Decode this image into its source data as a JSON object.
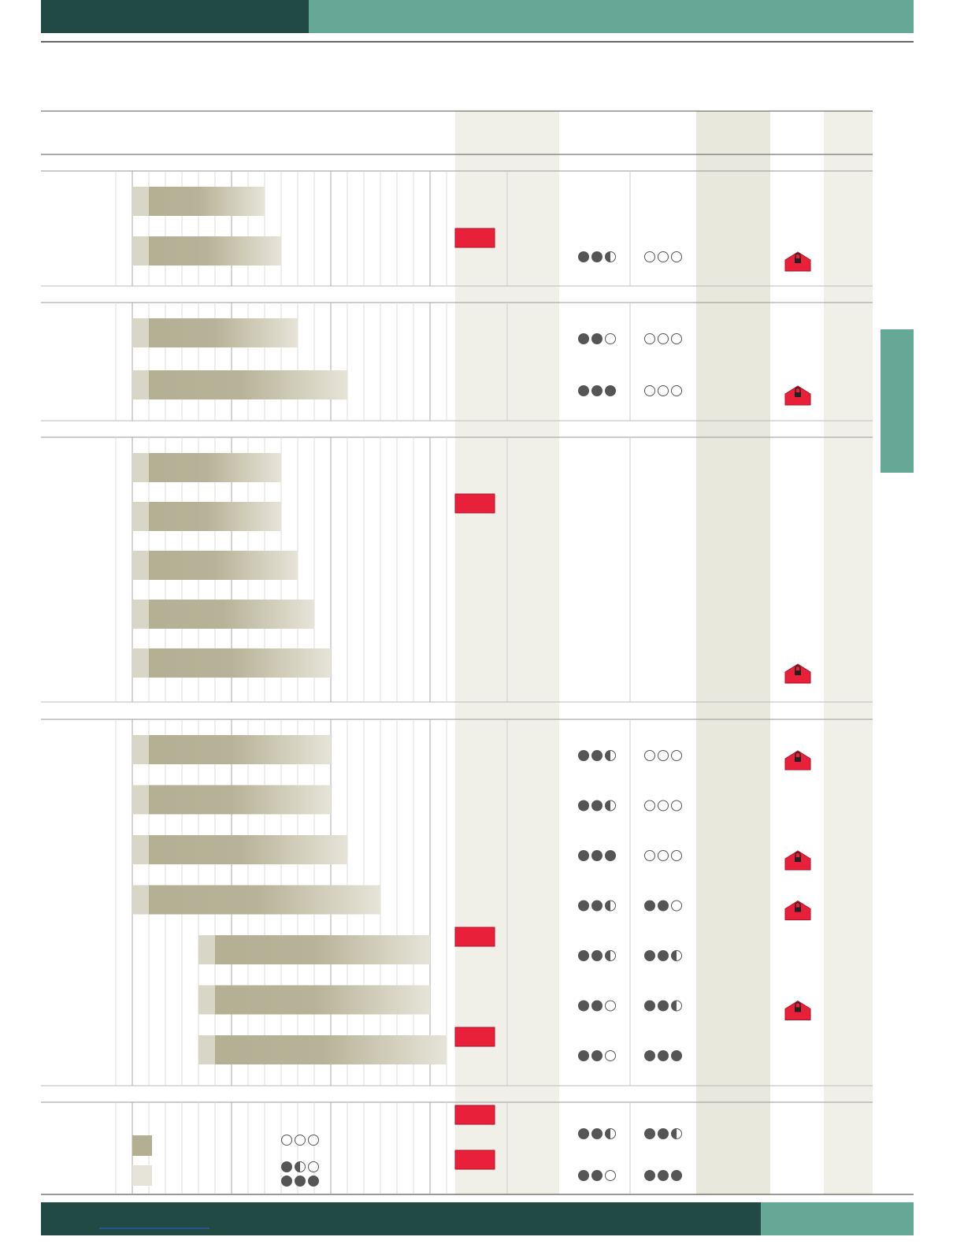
{
  "sections": [
    {
      "rows": [
        {
          "span": [
            1,
            9
          ],
          "ratings": null,
          "flag": false,
          "lock": false
        },
        {
          "span": [
            1,
            10
          ],
          "ratings": [
            2.5,
            0
          ],
          "flag": true,
          "lock": true
        }
      ]
    },
    {
      "rows": [
        {
          "span": [
            1,
            11
          ],
          "ratings": [
            2,
            0
          ],
          "flag": false,
          "lock": false
        },
        {
          "span": [
            1,
            14
          ],
          "ratings": [
            3,
            0
          ],
          "flag": false,
          "lock": true
        }
      ]
    },
    {
      "rows": [
        {
          "span": [
            1,
            10
          ],
          "ratings": null,
          "flag": false,
          "lock": false
        },
        {
          "span": [
            1,
            10
          ],
          "ratings": null,
          "flag": true,
          "lock": false
        },
        {
          "span": [
            1,
            11
          ],
          "ratings": null,
          "flag": false,
          "lock": false
        },
        {
          "span": [
            1,
            12
          ],
          "ratings": null,
          "flag": false,
          "lock": false
        },
        {
          "span": [
            1,
            13
          ],
          "ratings": null,
          "flag": false,
          "lock": true
        }
      ]
    },
    {
      "rows": [
        {
          "span": [
            1,
            13
          ],
          "ratings": [
            2.5,
            0
          ],
          "flag": false,
          "lock": true
        },
        {
          "span": [
            1,
            13
          ],
          "ratings": [
            2.5,
            0
          ],
          "flag": false,
          "lock": false
        },
        {
          "span": [
            1,
            14
          ],
          "ratings": [
            3,
            0
          ],
          "flag": false,
          "lock": true
        },
        {
          "span": [
            1,
            16
          ],
          "ratings": [
            2.5,
            2
          ],
          "flag": false,
          "lock": true
        },
        {
          "span": [
            5,
            19
          ],
          "ratings": [
            2.5,
            2.5
          ],
          "flag": true,
          "lock": false
        },
        {
          "span": [
            5,
            19
          ],
          "ratings": [
            2,
            2.5
          ],
          "flag": false,
          "lock": true
        },
        {
          "span": [
            5,
            20
          ],
          "ratings": [
            2,
            3
          ],
          "flag": true,
          "lock": false
        }
      ]
    }
  ],
  "legend": {
    "scale": [
      0,
      1.5,
      3
    ],
    "ratings": [
      [
        2.5,
        2.5
      ],
      [
        2,
        3
      ]
    ]
  }
}
